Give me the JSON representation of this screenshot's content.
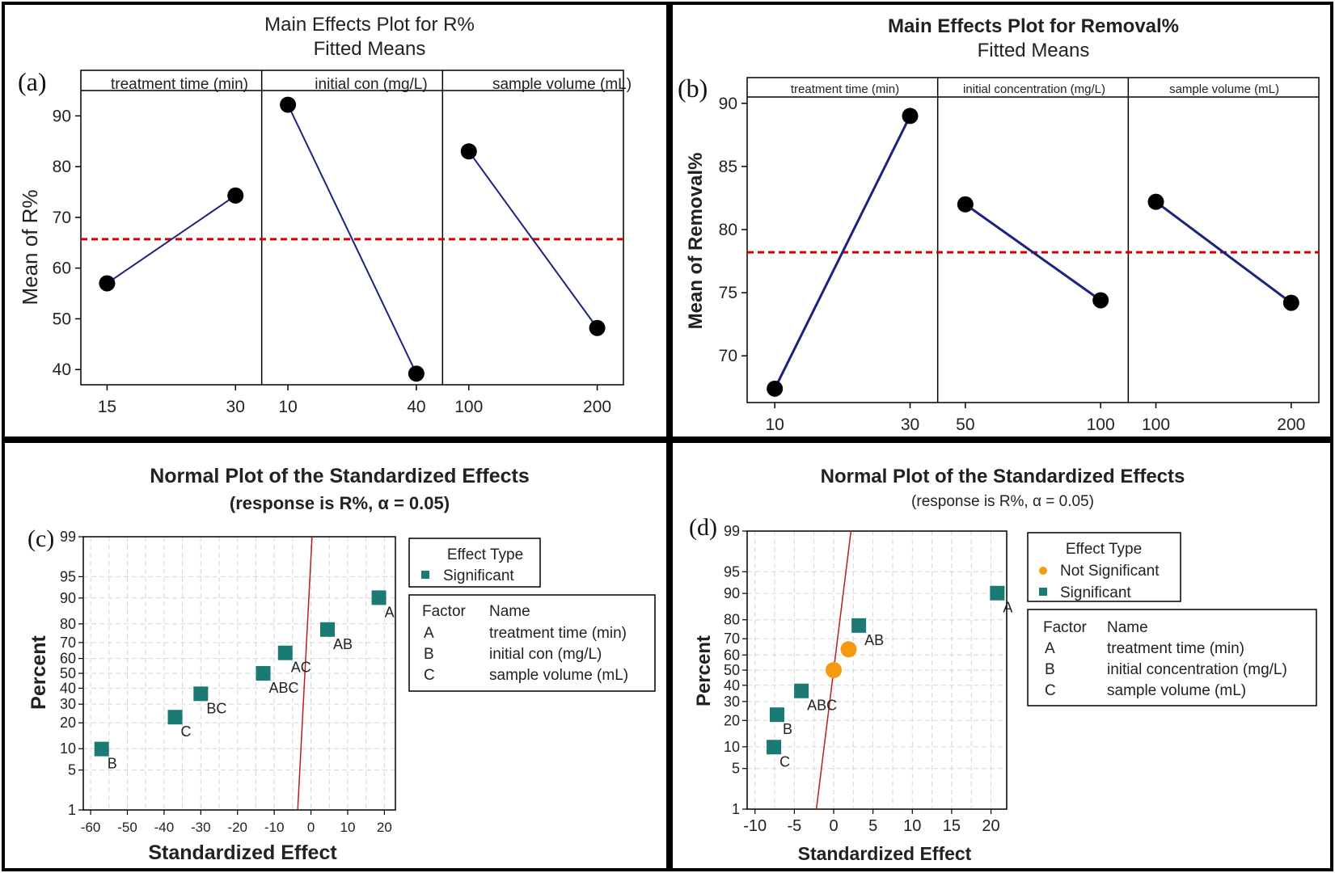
{
  "panels": {
    "a": {
      "label": "(a)",
      "title": "Main Effects Plot for R%",
      "subtitle": "Fitted Means",
      "ylabel": "Mean of R%",
      "yticks": [
        "40",
        "50",
        "60",
        "70",
        "80",
        "90"
      ],
      "facets": [
        "treatment time (min)",
        "initial con (mg/L)",
        "sample volume (mL)"
      ]
    },
    "b": {
      "label": "(b)",
      "title": "Main Effects Plot for Removal%",
      "subtitle": "Fitted Means",
      "ylabel": "Mean of Removal%",
      "yticks": [
        "70",
        "75",
        "80",
        "85",
        "90"
      ],
      "facets": [
        "treatment time (min)",
        "initial concentration (mg/L)",
        "sample volume (mL)"
      ]
    },
    "c": {
      "label": "(c)",
      "title": "Normal Plot of the Standardized Effects",
      "subtitle": "(response is R%, α = 0.05)",
      "xlabel": "Standardized Effect",
      "ylabel": "Percent",
      "yticks": [
        "1",
        "5",
        "10",
        "20",
        "30",
        "40",
        "50",
        "60",
        "70",
        "80",
        "90",
        "95",
        "99"
      ],
      "xticks": [
        "-60",
        "-50",
        "-40",
        "-30",
        "-20",
        "-10",
        "0",
        "10",
        "20"
      ],
      "legend_title": "Effect Type",
      "legend_items": [
        "Significant"
      ],
      "factor_header": [
        "Factor",
        "Name"
      ],
      "factors": [
        [
          "A",
          "treatment time (min)"
        ],
        [
          "B",
          "initial con (mg/L)"
        ],
        [
          "C",
          "sample volume (mL)"
        ]
      ]
    },
    "d": {
      "label": "(d)",
      "title": "Normal Plot of the Standardized Effects",
      "subtitle": "(response is R%, α = 0.05)",
      "xlabel": "Standardized Effect",
      "ylabel": "Percent",
      "yticks": [
        "1",
        "5",
        "10",
        "20",
        "30",
        "40",
        "50",
        "60",
        "70",
        "80",
        "90",
        "95",
        "99"
      ],
      "xticks": [
        "-10",
        "-5",
        "0",
        "5",
        "10",
        "15",
        "20"
      ],
      "legend_title": "Effect Type",
      "legend_items": [
        "Not Significant",
        "Significant"
      ],
      "factor_header": [
        "Factor",
        "Name"
      ],
      "factors": [
        [
          "A",
          "treatment time (min)"
        ],
        [
          "B",
          "initial concentration (mg/L)"
        ],
        [
          "C",
          "sample volume (mL)"
        ]
      ]
    }
  },
  "colors": {
    "line": "#1a237e",
    "reference": "#d50000",
    "significant": "#1b7a74",
    "not_significant": "#f59a10",
    "fit_line": "#b22222",
    "grid": "#d6d6d6"
  },
  "chart_data": [
    {
      "type": "line",
      "panel": "a",
      "title": "Main Effects Plot for R%",
      "ylim": [
        37,
        95
      ],
      "reference_mean": 65.7,
      "facets": [
        {
          "name": "treatment time (min)",
          "levels": [
            "15",
            "30"
          ],
          "values": [
            57,
            74.3
          ]
        },
        {
          "name": "initial con (mg/L)",
          "levels": [
            "10",
            "40"
          ],
          "values": [
            92.2,
            39.2
          ]
        },
        {
          "name": "sample volume (mL)",
          "levels": [
            "100",
            "200"
          ],
          "values": [
            83,
            48.2
          ]
        }
      ]
    },
    {
      "type": "line",
      "panel": "b",
      "title": "Main Effects Plot for Removal%",
      "ylim": [
        66.3,
        90.5
      ],
      "reference_mean": 78.2,
      "facets": [
        {
          "name": "treatment time (min)",
          "levels": [
            "10",
            "30"
          ],
          "values": [
            67.4,
            89
          ]
        },
        {
          "name": "initial concentration (mg/L)",
          "levels": [
            "50",
            "100"
          ],
          "values": [
            82,
            74.4
          ]
        },
        {
          "name": "sample volume (mL)",
          "levels": [
            "100",
            "200"
          ],
          "values": [
            82.2,
            74.2
          ]
        }
      ]
    },
    {
      "type": "scatter",
      "panel": "c",
      "title": "Normal Plot of the Standardized Effects",
      "xlim": [
        -62,
        23
      ],
      "ylim_percent": [
        1,
        99
      ],
      "points": [
        {
          "label": "B",
          "x": -57,
          "percent": 9.9,
          "type": "Significant"
        },
        {
          "label": "C",
          "x": -37,
          "percent": 22.8,
          "type": "Significant"
        },
        {
          "label": "BC",
          "x": -30,
          "percent": 36.4,
          "type": "Significant"
        },
        {
          "label": "ABC",
          "x": -13,
          "percent": 50,
          "type": "Significant"
        },
        {
          "label": "AC",
          "x": -7,
          "percent": 63.6,
          "type": "Significant"
        },
        {
          "label": "AB",
          "x": 4.5,
          "percent": 77.2,
          "type": "Significant"
        },
        {
          "label": "A",
          "x": 18.5,
          "percent": 90.1,
          "type": "Significant"
        }
      ],
      "fit_line": [
        {
          "x": -3.6,
          "percent": 1
        },
        {
          "x": 0.3,
          "percent": 99
        }
      ]
    },
    {
      "type": "scatter",
      "panel": "d",
      "title": "Normal Plot of the Standardized Effects",
      "xlim": [
        -11,
        22
      ],
      "ylim_percent": [
        1,
        99
      ],
      "points": [
        {
          "label": "C",
          "x": -7.6,
          "percent": 9.9,
          "type": "Significant"
        },
        {
          "label": "B",
          "x": -7.2,
          "percent": 22.8,
          "type": "Significant"
        },
        {
          "label": "ABC",
          "x": -4.1,
          "percent": 36.4,
          "type": "Significant"
        },
        {
          "label": "",
          "x": 0,
          "percent": 50,
          "type": "Not Significant"
        },
        {
          "label": "",
          "x": 1.9,
          "percent": 63.6,
          "type": "Not Significant"
        },
        {
          "label": "AB",
          "x": 3.2,
          "percent": 77.2,
          "type": "Significant"
        },
        {
          "label": "A",
          "x": 20.8,
          "percent": 90.1,
          "type": "Significant"
        }
      ],
      "fit_line": [
        {
          "x": -2.2,
          "percent": 1
        },
        {
          "x": 2.2,
          "percent": 99
        }
      ]
    }
  ]
}
